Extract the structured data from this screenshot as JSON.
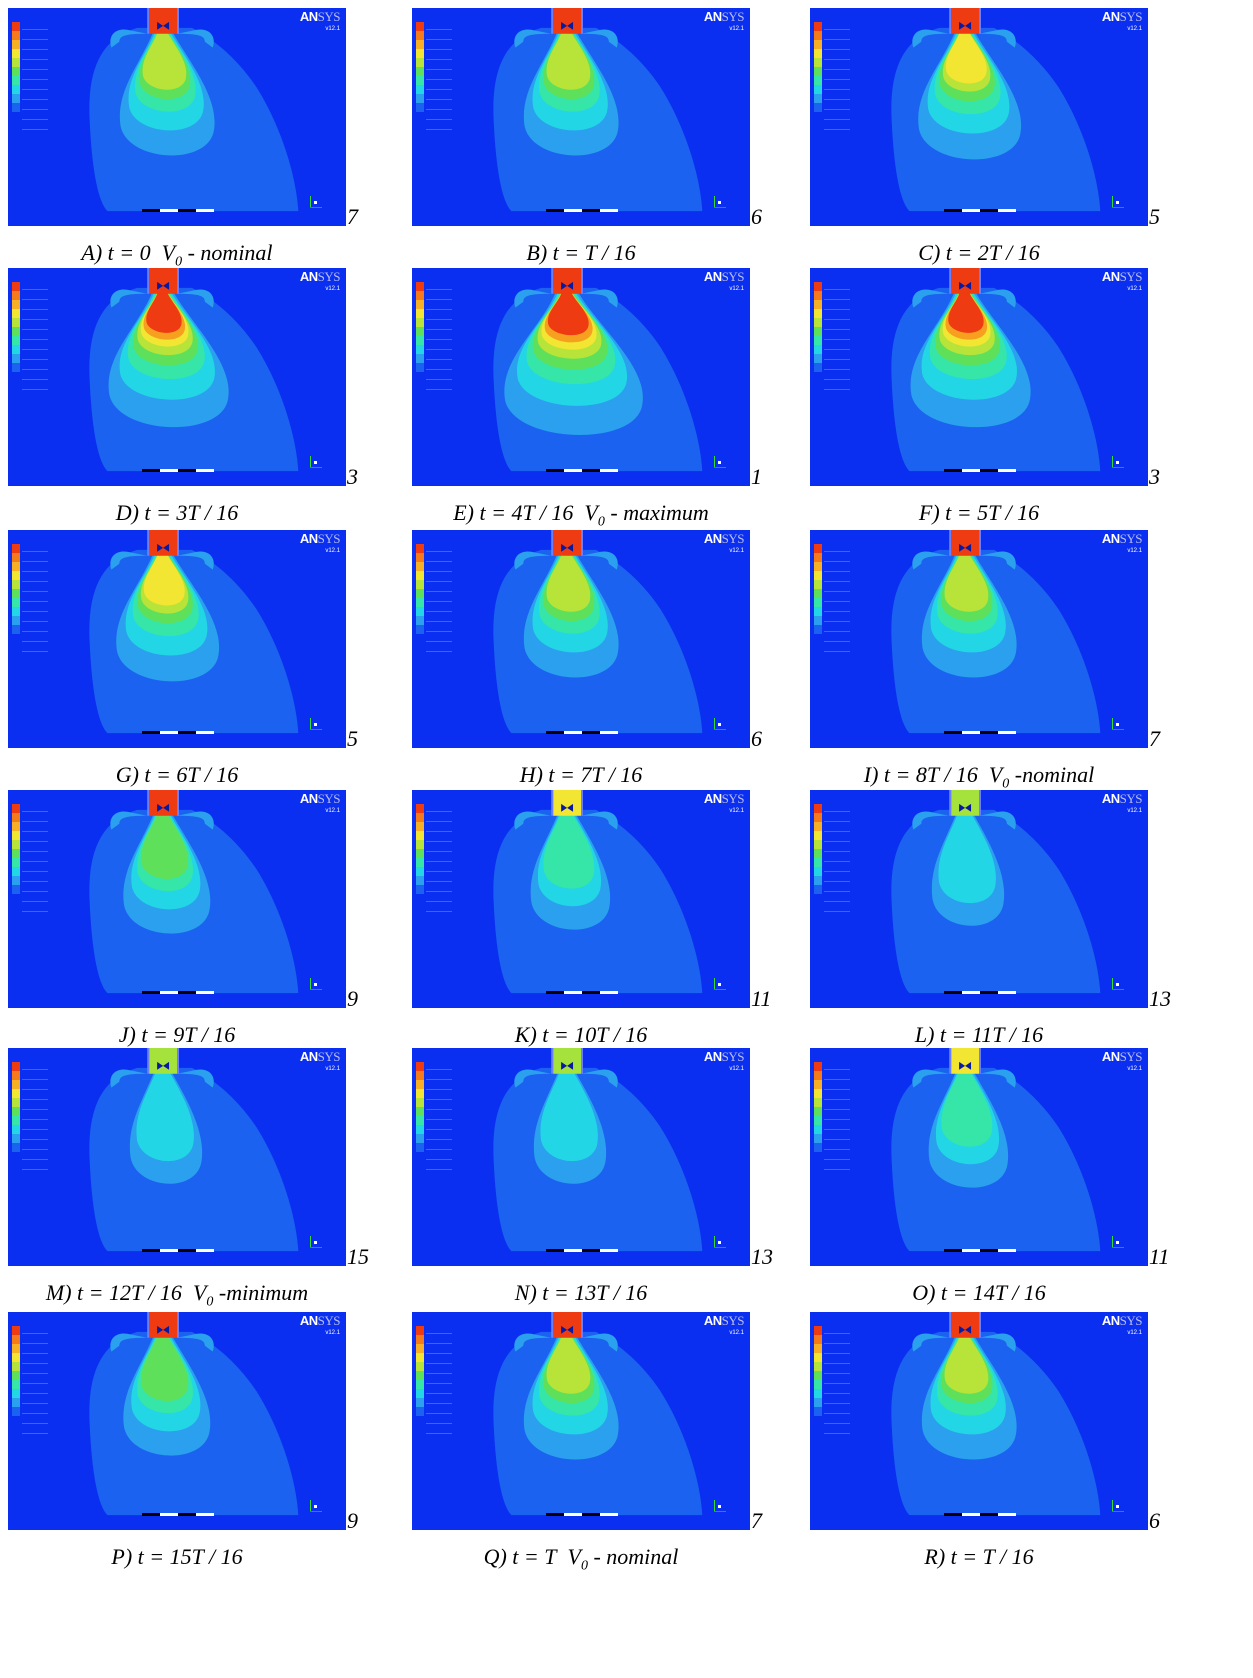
{
  "logo": {
    "brand_bold": "AN",
    "brand_light": "SYS",
    "version": "v12.1"
  },
  "colors": {
    "background": "#0a2ff0",
    "contour_levels": [
      "#1b62f0",
      "#2aa0ee",
      "#22d6e6",
      "#35e6a8",
      "#5fe05a",
      "#b8e43a",
      "#f3e632",
      "#f7a020",
      "#ef3b12"
    ],
    "legend_scale": [
      "#ef3b12",
      "#f47a1a",
      "#f7b026",
      "#f3e632",
      "#b8e43a",
      "#5fe05a",
      "#35e6a8",
      "#22d6e6",
      "#2aa0ee",
      "#1b62f0",
      "#0a2ff0"
    ]
  },
  "panels": [
    {
      "letter": "A",
      "caption": "A) t = 0",
      "variable": "V",
      "subscript": "0",
      "suffix": " - nominal",
      "marker": "7",
      "intensity": 3,
      "stem": "red"
    },
    {
      "letter": "B",
      "caption": "B) t = T / 16",
      "marker": "6",
      "intensity": 3,
      "stem": "red"
    },
    {
      "letter": "C",
      "caption": "C) t = 2T / 16",
      "marker": "5",
      "intensity": 4,
      "stem": "red"
    },
    {
      "letter": "D",
      "caption": "D) t = 3T / 16",
      "marker": "3",
      "intensity": 6,
      "stem": "red"
    },
    {
      "letter": "E",
      "caption": "E) t = 4T / 16",
      "variable": "V",
      "subscript": "0",
      "suffix": " - maximum",
      "marker": "1",
      "intensity": 8,
      "stem": "red"
    },
    {
      "letter": "F",
      "caption": "F) t = 5T / 16",
      "marker": "3",
      "intensity": 6,
      "stem": "red"
    },
    {
      "letter": "G",
      "caption": "G) t = 6T / 16",
      "marker": "5",
      "intensity": 4,
      "stem": "red"
    },
    {
      "letter": "H",
      "caption": "H) t = 7T / 16",
      "marker": "6",
      "intensity": 3,
      "stem": "red"
    },
    {
      "letter": "I",
      "caption": "I) t = 8T / 16",
      "variable": "V",
      "subscript": "0",
      "suffix": " -nominal",
      "marker": "7",
      "intensity": 3,
      "stem": "red"
    },
    {
      "letter": "J",
      "caption": "J) t = 9T / 16",
      "marker": "9",
      "intensity": 2,
      "stem": "red"
    },
    {
      "letter": "K",
      "caption": "K) t = 10T / 16",
      "marker": "11",
      "intensity": 1,
      "stem": "yellow"
    },
    {
      "letter": "L",
      "caption": "L) t = 11T / 16",
      "marker": "13",
      "intensity": 0,
      "stem": "green"
    },
    {
      "letter": "M",
      "caption": "M) t = 12T / 16",
      "variable": "V",
      "subscript": "0",
      "suffix": " -minimum",
      "marker": "15",
      "intensity": 0,
      "stem": "green"
    },
    {
      "letter": "N",
      "caption": "N) t = 13T / 16",
      "marker": "13",
      "intensity": 0,
      "stem": "green"
    },
    {
      "letter": "O",
      "caption": "O) t = 14T / 16",
      "marker": "11",
      "intensity": 1,
      "stem": "yellow"
    },
    {
      "letter": "P",
      "caption": "P) t = 15T / 16",
      "marker": "9",
      "intensity": 2,
      "stem": "red"
    },
    {
      "letter": "Q",
      "caption": "Q) t = T",
      "variable": "V",
      "subscript": "0",
      "suffix": " - nominal",
      "marker": "7",
      "intensity": 3,
      "stem": "red"
    },
    {
      "letter": "R",
      "caption": "R) t = T / 16",
      "marker": "6",
      "intensity": 3,
      "stem": "red"
    }
  ]
}
